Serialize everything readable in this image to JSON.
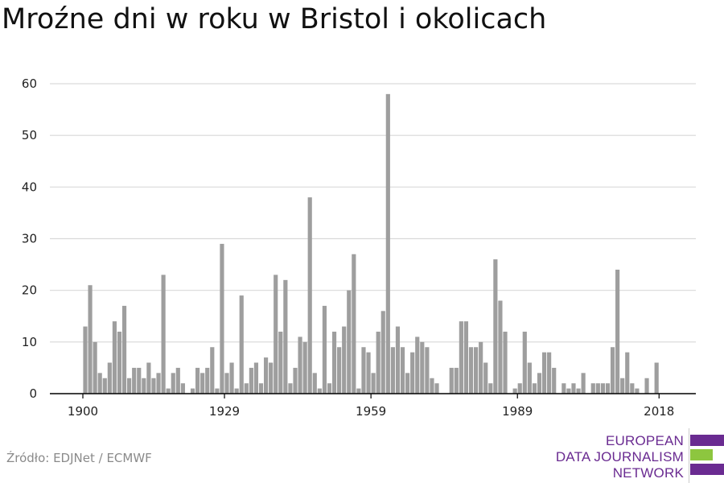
{
  "title": "Mroźne dni w roku w Bristol i okolicach",
  "source": "Źródło: EDJNet / ECMWF",
  "logo": {
    "line1": "EUROPEAN",
    "line2": "DATA JOURNALISM",
    "line3": "NETWORK",
    "colors": {
      "purple": "#6a2b91",
      "green": "#8dc63f"
    }
  },
  "colors": {
    "bar": "#9e9e9e",
    "grid": "#d9d9d9",
    "axis": "#000000"
  },
  "chart_data": {
    "type": "bar",
    "title": "Mroźne dni w roku w Bristol i okolicach",
    "xlabel": "",
    "ylabel": "",
    "ylim": [
      0,
      60
    ],
    "yticks": [
      0,
      10,
      20,
      30,
      40,
      50,
      60
    ],
    "xticks": [
      1900,
      1929,
      1959,
      1989,
      2018
    ],
    "xlim": [
      1900,
      2020
    ],
    "grid": true,
    "x": [
      1900,
      1901,
      1902,
      1903,
      1904,
      1905,
      1906,
      1907,
      1908,
      1909,
      1910,
      1911,
      1912,
      1913,
      1914,
      1915,
      1916,
      1917,
      1918,
      1919,
      1920,
      1921,
      1922,
      1923,
      1924,
      1925,
      1926,
      1927,
      1928,
      1929,
      1930,
      1931,
      1932,
      1933,
      1934,
      1935,
      1936,
      1937,
      1938,
      1939,
      1940,
      1941,
      1942,
      1943,
      1944,
      1945,
      1946,
      1947,
      1948,
      1949,
      1950,
      1951,
      1952,
      1953,
      1954,
      1955,
      1956,
      1957,
      1958,
      1959,
      1960,
      1961,
      1962,
      1963,
      1964,
      1965,
      1966,
      1967,
      1968,
      1969,
      1970,
      1971,
      1972,
      1973,
      1974,
      1975,
      1976,
      1977,
      1978,
      1979,
      1980,
      1981,
      1982,
      1983,
      1984,
      1985,
      1986,
      1987,
      1988,
      1989,
      1990,
      1991,
      1992,
      1993,
      1994,
      1995,
      1996,
      1997,
      1998,
      1999,
      2000,
      2001,
      2002,
      2003,
      2004,
      2005,
      2006,
      2007,
      2008,
      2009,
      2010,
      2011,
      2012,
      2013,
      2014,
      2015,
      2016,
      2017,
      2018,
      2019
    ],
    "values": [
      13,
      21,
      10,
      4,
      3,
      6,
      14,
      12,
      17,
      3,
      5,
      5,
      3,
      6,
      3,
      4,
      23,
      1,
      4,
      5,
      2,
      0,
      1,
      5,
      4,
      5,
      9,
      1,
      29,
      4,
      6,
      1,
      19,
      2,
      5,
      6,
      2,
      7,
      6,
      23,
      12,
      22,
      2,
      5,
      11,
      10,
      38,
      4,
      1,
      17,
      2,
      12,
      9,
      13,
      20,
      27,
      1,
      9,
      8,
      4,
      12,
      16,
      58,
      9,
      13,
      9,
      4,
      8,
      11,
      10,
      9,
      3,
      2,
      0,
      0,
      5,
      5,
      14,
      14,
      9,
      9,
      10,
      6,
      2,
      26,
      18,
      12,
      0,
      1,
      2,
      12,
      6,
      2,
      4,
      8,
      8,
      5,
      0,
      2,
      1,
      2,
      1,
      4,
      0,
      2,
      2,
      2,
      2,
      9,
      24,
      3,
      8,
      2,
      1,
      0,
      3,
      0,
      6,
      0,
      0
    ]
  }
}
